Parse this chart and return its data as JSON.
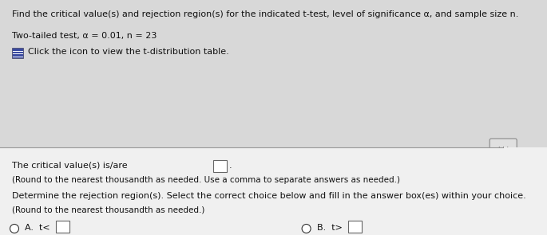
{
  "title_line1": "Find the critical value(s) and rejection region(s) for the indicated t-test, level of significance α, and sample size n.",
  "line2": "Two-tailed test, α = 0.01, n = 23",
  "line3": "Click the icon to view the t-distribution table.",
  "line4": "The critical value(s) is/are",
  "line5": "(Round to the nearest thousandth as needed. Use a comma to separate answers as needed.)",
  "line6": "Determine the rejection region(s). Select the correct choice below and fill in the answer box(es) within your choice.",
  "line7": "(Round to the nearest thousandth as needed.)",
  "bg_top": "#d8d8d8",
  "bg_bottom": "#f0f0f0",
  "divider_color": "#999999",
  "text_color": "#111111",
  "font_size": 8.0,
  "icon_color": "#3a4aa0",
  "dots_color": "#555555",
  "box_color_filled": "#b0b0b0",
  "box_color_empty": "#ffffff"
}
